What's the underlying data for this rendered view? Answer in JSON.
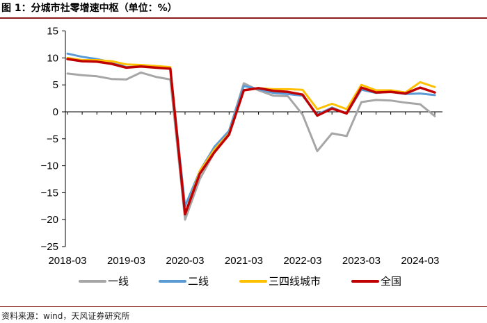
{
  "header": {
    "title": "图 1：分城市社零增速中枢（单位：%）"
  },
  "footer": {
    "source": "资料来源：wind，天风证券研究所"
  },
  "chart_data": {
    "type": "line",
    "title": "图 1：分城市社零增速中枢（单位：%）",
    "xlabel": "",
    "ylabel": "",
    "ylim": [
      -25,
      15
    ],
    "yticks": [
      15,
      10,
      5,
      0,
      -5,
      -10,
      -15,
      -20,
      -25
    ],
    "x_tick_labels": [
      "2018-03",
      "2019-03",
      "2020-03",
      "2021-03",
      "2022-03",
      "2023-03",
      "2024-03"
    ],
    "x": [
      "2018-03",
      "2018-06",
      "2018-09",
      "2018-12",
      "2019-03",
      "2019-06",
      "2019-09",
      "2019-12",
      "2020-03",
      "2020-06",
      "2020-09",
      "2020-12",
      "2021-03",
      "2021-06",
      "2021-09",
      "2021-12",
      "2022-03",
      "2022-06",
      "2022-09",
      "2022-12",
      "2023-03",
      "2023-06",
      "2023-09",
      "2023-12",
      "2024-03",
      "2024-06"
    ],
    "series": [
      {
        "name": "一线",
        "color": "#a6a6a6",
        "values": [
          7.1,
          6.8,
          6.6,
          6.1,
          6.0,
          7.3,
          6.5,
          6.0,
          -20.0,
          -12.5,
          -7.5,
          -3.5,
          5.3,
          4.0,
          3.0,
          2.9,
          -0.5,
          -7.3,
          -4.0,
          -4.5,
          1.8,
          2.2,
          2.1,
          1.7,
          1.4,
          -0.8
        ]
      },
      {
        "name": "二线",
        "color": "#5b9bd5",
        "values": [
          10.8,
          10.2,
          9.8,
          9.2,
          8.3,
          8.4,
          8.3,
          8.0,
          -17.5,
          -11.0,
          -6.5,
          -3.5,
          4.8,
          4.2,
          3.5,
          3.3,
          3.0,
          -0.5,
          0.8,
          -0.3,
          4.1,
          3.5,
          3.7,
          3.3,
          3.4,
          3.1
        ]
      },
      {
        "name": "三四线城市",
        "color": "#ffc000",
        "values": [
          10.0,
          9.6,
          9.6,
          9.4,
          8.8,
          8.7,
          8.5,
          8.3,
          -19.0,
          -11.0,
          -7.0,
          -4.0,
          4.0,
          4.4,
          4.2,
          4.2,
          4.1,
          0.5,
          1.5,
          0.5,
          5.0,
          4.0,
          4.0,
          3.6,
          5.5,
          4.6
        ]
      },
      {
        "name": "全国",
        "color": "#c00000",
        "values": [
          9.8,
          9.4,
          9.3,
          8.9,
          8.2,
          8.4,
          8.2,
          8.0,
          -19.0,
          -11.5,
          -7.5,
          -4.2,
          4.0,
          4.4,
          3.9,
          3.7,
          3.2,
          -0.7,
          0.6,
          -0.3,
          4.5,
          3.6,
          3.7,
          3.4,
          4.5,
          3.6
        ]
      }
    ],
    "legend": "bottom",
    "grid": false
  }
}
